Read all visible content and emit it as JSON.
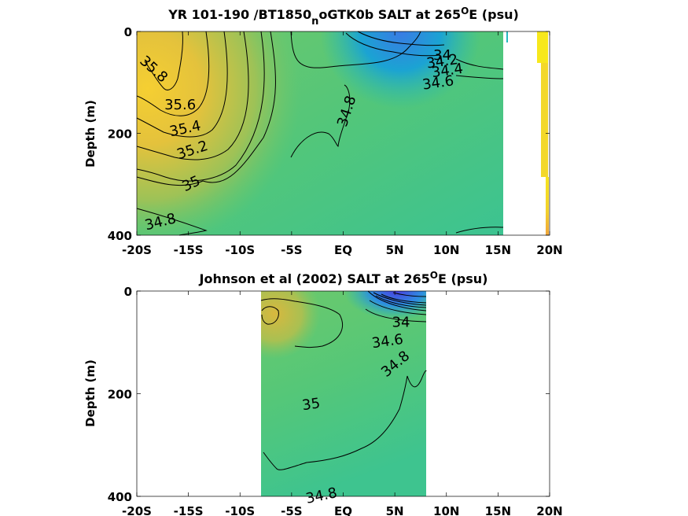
{
  "chart_data": [
    {
      "type": "heatmap",
      "title_main": "YR 101-190 /BT1850",
      "title_sub": "n",
      "title_rest": "oGTK0b SALT at 265",
      "title_sup": "O",
      "title_tail": "E (psu)",
      "ylabel": "Depth (m)",
      "x_ticks": [
        "-20S",
        "-15S",
        "-10S",
        "-5S",
        "EQ",
        "5N",
        "10N",
        "15N",
        "20N"
      ],
      "x_tick_values": [
        -20,
        -15,
        -10,
        -5,
        0,
        5,
        10,
        15,
        20
      ],
      "y_ticks": [
        "0",
        "200",
        "400"
      ],
      "y_tick_values": [
        0,
        200,
        400
      ],
      "xlim": [
        -20,
        20
      ],
      "ylim": [
        0,
        400
      ],
      "data_xlim": [
        -20,
        15.5
      ],
      "contour_labels": [
        {
          "text": "35.8",
          "x": -18.4,
          "y": 75,
          "angle": 42
        },
        {
          "text": "35.6",
          "x": -15.8,
          "y": 145,
          "angle": 0
        },
        {
          "text": "35.4",
          "x": -15.3,
          "y": 192,
          "angle": -12
        },
        {
          "text": "35.2",
          "x": -14.6,
          "y": 234,
          "angle": -18
        },
        {
          "text": "35",
          "x": -14.7,
          "y": 300,
          "angle": -25
        },
        {
          "text": "34.8",
          "x": -17.7,
          "y": 375,
          "angle": -14
        },
        {
          "text": "34.8",
          "x": 0.4,
          "y": 157,
          "angle": -72
        },
        {
          "text": "34",
          "x": 9.6,
          "y": 48,
          "angle": 0
        },
        {
          "text": "34.2",
          "x": 9.6,
          "y": 60,
          "angle": -8
        },
        {
          "text": "34.4",
          "x": 10.1,
          "y": 78,
          "angle": -8
        },
        {
          "text": "34.6",
          "x": 9.2,
          "y": 102,
          "angle": -8
        }
      ]
    },
    {
      "type": "heatmap",
      "title_main": "Johnson et al (2002) SALT at 265",
      "title_sup": "O",
      "title_tail": "E (psu)",
      "ylabel": "Depth (m)",
      "x_ticks": [
        "-20S",
        "-15S",
        "-10S",
        "-5S",
        "EQ",
        "5N",
        "10N",
        "15N",
        "20N"
      ],
      "x_tick_values": [
        -20,
        -15,
        -10,
        -5,
        0,
        5,
        10,
        15,
        20
      ],
      "y_ticks": [
        "0",
        "200",
        "400"
      ],
      "y_tick_values": [
        0,
        200,
        400
      ],
      "xlim": [
        -20,
        20
      ],
      "ylim": [
        0,
        400
      ],
      "data_xlim": [
        -8,
        8
      ],
      "contour_labels": [
        {
          "text": "35",
          "x": -3.1,
          "y": 222,
          "angle": -8
        },
        {
          "text": "34.8",
          "x": -2.1,
          "y": 670,
          "angle": -12
        },
        {
          "text": "34",
          "x": 5.6,
          "y": 62,
          "angle": 0
        },
        {
          "text": "34.6",
          "x": 4.3,
          "y": 99,
          "angle": -8
        },
        {
          "text": "34.8",
          "x": 5.1,
          "y": 143,
          "angle": -40
        }
      ]
    }
  ]
}
